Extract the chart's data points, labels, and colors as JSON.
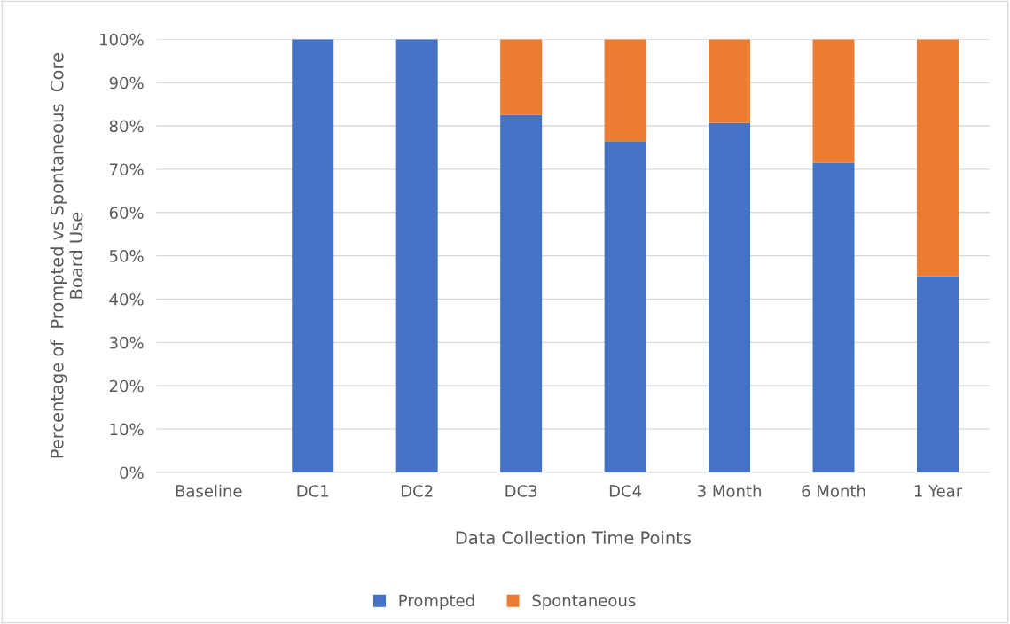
{
  "chart_data": {
    "type": "bar",
    "stacked": true,
    "xlabel": "Data Collection Time Points",
    "ylabel": "Percentage of  Prompted vs Spontaneous  Core\nBoard Use",
    "categories": [
      "Baseline",
      "DC1",
      "DC2",
      "DC3",
      "DC4",
      "3 Month",
      "6 Month",
      "1 Year"
    ],
    "series": [
      {
        "name": "Prompted",
        "color": "#4472c4",
        "values": [
          0,
          100,
          100,
          82.5,
          76.5,
          80.7,
          71.5,
          45.3
        ]
      },
      {
        "name": "Spontaneous",
        "color": "#ed7d31",
        "values": [
          0,
          0,
          0,
          17.5,
          23.5,
          19.3,
          28.5,
          54.7
        ]
      }
    ],
    "ylim": [
      0,
      100
    ],
    "yticks": [
      {
        "value": 0,
        "label": "0%"
      },
      {
        "value": 10,
        "label": "10%"
      },
      {
        "value": 20,
        "label": "20%"
      },
      {
        "value": 30,
        "label": "30%"
      },
      {
        "value": 40,
        "label": "40%"
      },
      {
        "value": 50,
        "label": "50%"
      },
      {
        "value": 60,
        "label": "60%"
      },
      {
        "value": 70,
        "label": "70%"
      },
      {
        "value": 80,
        "label": "80%"
      },
      {
        "value": 90,
        "label": "90%"
      },
      {
        "value": 100,
        "label": "100%"
      }
    ],
    "grid": "y",
    "legend": "bottom"
  }
}
